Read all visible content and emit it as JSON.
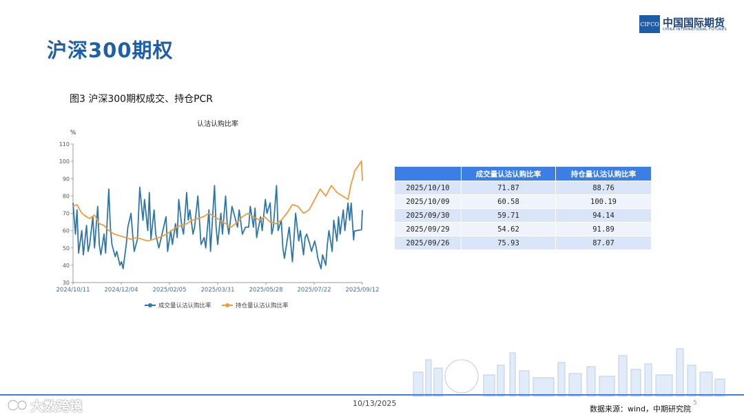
{
  "header": {
    "title": "沪深300期权"
  },
  "logo": {
    "abbr": "CIFCO",
    "name_cn": "中国国际期货",
    "name_en": "CHINA INTERNATIONAL FUTURES"
  },
  "figure": {
    "caption": "图3 沪深300期权成交、持仓PCR"
  },
  "chart_data": {
    "type": "line",
    "title": "认沽认购比率",
    "ylabel": "%",
    "ylim": [
      30,
      110
    ],
    "yticks": [
      30,
      40,
      50,
      60,
      70,
      80,
      90,
      100,
      110
    ],
    "xlim": [
      "2024-10-11",
      "2025-10-10"
    ],
    "xtick_labels": [
      "2024/10/11",
      "2024/12/04",
      "2025/02/05",
      "2025/03/31",
      "2025/05/28",
      "2025/07/22",
      "2025/09/12"
    ],
    "grid": false,
    "legend_position": "bottom",
    "series": [
      {
        "name": "成交量认沽认购比率",
        "color": "#2e75a8",
        "points": [
          [
            "2024-10-11",
            76
          ],
          [
            "2024-10-14",
            58
          ],
          [
            "2024-10-16",
            72
          ],
          [
            "2024-10-18",
            47
          ],
          [
            "2024-10-22",
            60
          ],
          [
            "2024-10-24",
            46
          ],
          [
            "2024-10-28",
            63
          ],
          [
            "2024-10-30",
            48
          ],
          [
            "2024-11-01",
            52
          ],
          [
            "2024-11-05",
            68
          ],
          [
            "2024-11-07",
            50
          ],
          [
            "2024-11-11",
            74
          ],
          [
            "2024-11-13",
            52
          ],
          [
            "2024-11-15",
            46
          ],
          [
            "2024-11-19",
            58
          ],
          [
            "2024-11-21",
            47
          ],
          [
            "2024-11-25",
            84
          ],
          [
            "2024-11-27",
            62
          ],
          [
            "2024-11-29",
            52
          ],
          [
            "2024-12-03",
            45
          ],
          [
            "2024-12-05",
            48
          ],
          [
            "2024-12-09",
            40
          ],
          [
            "2024-12-11",
            42
          ],
          [
            "2024-12-13",
            38
          ],
          [
            "2024-12-17",
            52
          ],
          [
            "2024-12-19",
            62
          ],
          [
            "2024-12-23",
            70
          ],
          [
            "2024-12-25",
            58
          ],
          [
            "2024-12-27",
            48
          ],
          [
            "2024-12-31",
            55
          ],
          [
            "2025-01-03",
            85
          ],
          [
            "2025-01-07",
            66
          ],
          [
            "2025-01-09",
            78
          ],
          [
            "2025-01-13",
            60
          ],
          [
            "2025-01-15",
            82
          ],
          [
            "2025-01-17",
            55
          ],
          [
            "2025-01-21",
            72
          ],
          [
            "2025-01-23",
            58
          ],
          [
            "2025-01-27",
            50
          ],
          [
            "2025-02-05",
            68
          ],
          [
            "2025-02-07",
            48
          ],
          [
            "2025-02-11",
            60
          ],
          [
            "2025-02-13",
            52
          ],
          [
            "2025-02-17",
            64
          ],
          [
            "2025-02-19",
            56
          ],
          [
            "2025-02-21",
            78
          ],
          [
            "2025-02-25",
            62
          ],
          [
            "2025-02-27",
            58
          ],
          [
            "2025-03-03",
            82
          ],
          [
            "2025-03-05",
            66
          ],
          [
            "2025-03-07",
            72
          ],
          [
            "2025-03-11",
            58
          ],
          [
            "2025-03-13",
            62
          ],
          [
            "2025-03-17",
            80
          ],
          [
            "2025-03-19",
            66
          ],
          [
            "2025-03-21",
            52
          ],
          [
            "2025-03-25",
            56
          ],
          [
            "2025-03-27",
            50
          ],
          [
            "2025-03-31",
            72
          ],
          [
            "2025-04-02",
            48
          ],
          [
            "2025-04-07",
            86
          ],
          [
            "2025-04-09",
            62
          ],
          [
            "2025-04-11",
            52
          ],
          [
            "2025-04-15",
            70
          ],
          [
            "2025-04-17",
            58
          ],
          [
            "2025-04-21",
            80
          ],
          [
            "2025-04-23",
            64
          ],
          [
            "2025-04-25",
            58
          ],
          [
            "2025-04-29",
            74
          ],
          [
            "2025-05-06",
            62
          ],
          [
            "2025-05-08",
            72
          ],
          [
            "2025-05-12",
            58
          ],
          [
            "2025-05-14",
            60
          ],
          [
            "2025-05-16",
            62
          ],
          [
            "2025-05-20",
            62
          ],
          [
            "2025-05-22",
            74
          ],
          [
            "2025-05-26",
            62
          ],
          [
            "2025-05-28",
            73
          ],
          [
            "2025-05-30",
            56
          ],
          [
            "2025-06-04",
            68
          ],
          [
            "2025-06-06",
            60
          ],
          [
            "2025-06-10",
            78
          ],
          [
            "2025-06-12",
            70
          ],
          [
            "2025-06-16",
            76
          ],
          [
            "2025-06-18",
            58
          ],
          [
            "2025-06-20",
            62
          ],
          [
            "2025-06-24",
            86
          ],
          [
            "2025-06-26",
            60
          ],
          [
            "2025-06-30",
            66
          ],
          [
            "2025-07-02",
            50
          ],
          [
            "2025-07-04",
            44
          ],
          [
            "2025-07-08",
            56
          ],
          [
            "2025-07-10",
            62
          ],
          [
            "2025-07-14",
            42
          ],
          [
            "2025-07-16",
            56
          ],
          [
            "2025-07-18",
            70
          ],
          [
            "2025-07-22",
            54
          ],
          [
            "2025-07-24",
            60
          ],
          [
            "2025-07-28",
            46
          ],
          [
            "2025-07-30",
            56
          ],
          [
            "2025-08-01",
            58
          ],
          [
            "2025-08-05",
            52
          ],
          [
            "2025-08-07",
            48
          ],
          [
            "2025-08-11",
            54
          ],
          [
            "2025-08-13",
            50
          ],
          [
            "2025-08-15",
            44
          ],
          [
            "2025-08-19",
            38
          ],
          [
            "2025-08-21",
            46
          ],
          [
            "2025-08-25",
            40
          ],
          [
            "2025-08-27",
            52
          ],
          [
            "2025-08-29",
            60
          ],
          [
            "2025-09-02",
            48
          ],
          [
            "2025-09-04",
            66
          ],
          [
            "2025-09-08",
            54
          ],
          [
            "2025-09-10",
            68
          ],
          [
            "2025-09-12",
            58
          ],
          [
            "2025-09-16",
            72
          ],
          [
            "2025-09-18",
            60
          ],
          [
            "2025-09-22",
            76
          ],
          [
            "2025-09-24",
            66
          ],
          [
            "2025-09-26",
            75.93
          ],
          [
            "2025-09-29",
            54.62
          ],
          [
            "2025-09-30",
            59.71
          ],
          [
            "2025-10-09",
            60.58
          ],
          [
            "2025-10-10",
            71.87
          ]
        ]
      },
      {
        "name": "持仓量认沽认购比率",
        "color": "#ef9b3a",
        "points": [
          [
            "2024-10-11",
            74
          ],
          [
            "2024-10-16",
            75
          ],
          [
            "2024-10-22",
            70
          ],
          [
            "2024-10-28",
            68
          ],
          [
            "2024-11-01",
            67
          ],
          [
            "2024-11-07",
            69
          ],
          [
            "2024-11-13",
            64
          ],
          [
            "2024-11-19",
            63
          ],
          [
            "2024-11-25",
            60
          ],
          [
            "2024-12-02",
            58
          ],
          [
            "2024-12-09",
            57
          ],
          [
            "2024-12-16",
            56
          ],
          [
            "2024-12-23",
            55
          ],
          [
            "2024-12-30",
            56
          ],
          [
            "2025-01-06",
            55
          ],
          [
            "2025-01-13",
            54
          ],
          [
            "2025-01-20",
            55
          ],
          [
            "2025-01-27",
            56
          ],
          [
            "2025-02-06",
            58
          ],
          [
            "2025-02-12",
            60
          ],
          [
            "2025-02-18",
            62
          ],
          [
            "2025-02-24",
            63
          ],
          [
            "2025-03-03",
            64
          ],
          [
            "2025-03-10",
            66
          ],
          [
            "2025-03-17",
            67
          ],
          [
            "2025-03-24",
            68
          ],
          [
            "2025-03-31",
            70
          ],
          [
            "2025-04-07",
            68
          ],
          [
            "2025-04-14",
            66
          ],
          [
            "2025-04-21",
            64
          ],
          [
            "2025-04-28",
            62
          ],
          [
            "2025-05-06",
            65
          ],
          [
            "2025-05-12",
            68
          ],
          [
            "2025-05-19",
            70
          ],
          [
            "2025-05-26",
            68
          ],
          [
            "2025-06-03",
            66
          ],
          [
            "2025-06-09",
            68
          ],
          [
            "2025-06-16",
            65
          ],
          [
            "2025-06-23",
            64
          ],
          [
            "2025-06-30",
            66
          ],
          [
            "2025-07-07",
            70
          ],
          [
            "2025-07-14",
            75
          ],
          [
            "2025-07-21",
            74
          ],
          [
            "2025-07-28",
            70
          ],
          [
            "2025-08-04",
            72
          ],
          [
            "2025-08-11",
            78
          ],
          [
            "2025-08-18",
            84
          ],
          [
            "2025-08-25",
            80
          ],
          [
            "2025-09-01",
            86
          ],
          [
            "2025-09-08",
            82
          ],
          [
            "2025-09-15",
            80
          ],
          [
            "2025-09-22",
            78
          ],
          [
            "2025-09-26",
            87.07
          ],
          [
            "2025-09-29",
            91.89
          ],
          [
            "2025-09-30",
            94.14
          ],
          [
            "2025-10-09",
            100.19
          ],
          [
            "2025-10-10",
            88.76
          ]
        ]
      }
    ]
  },
  "table": {
    "headers": [
      "",
      "成交量认沽认购比率",
      "持仓量认沽认购比率"
    ],
    "rows": [
      [
        "2025/10/10",
        "71.87",
        "88.76"
      ],
      [
        "2025/10/09",
        "60.58",
        "100.19"
      ],
      [
        "2025/09/30",
        "59.71",
        "94.14"
      ],
      [
        "2025/09/29",
        "54.62",
        "91.89"
      ],
      [
        "2025/09/26",
        "75.93",
        "87.07"
      ]
    ]
  },
  "footer": {
    "date": "10/13/2025",
    "source": "数据来源：wind，中期研究院",
    "page": "5",
    "watermark": "大数跨境"
  }
}
